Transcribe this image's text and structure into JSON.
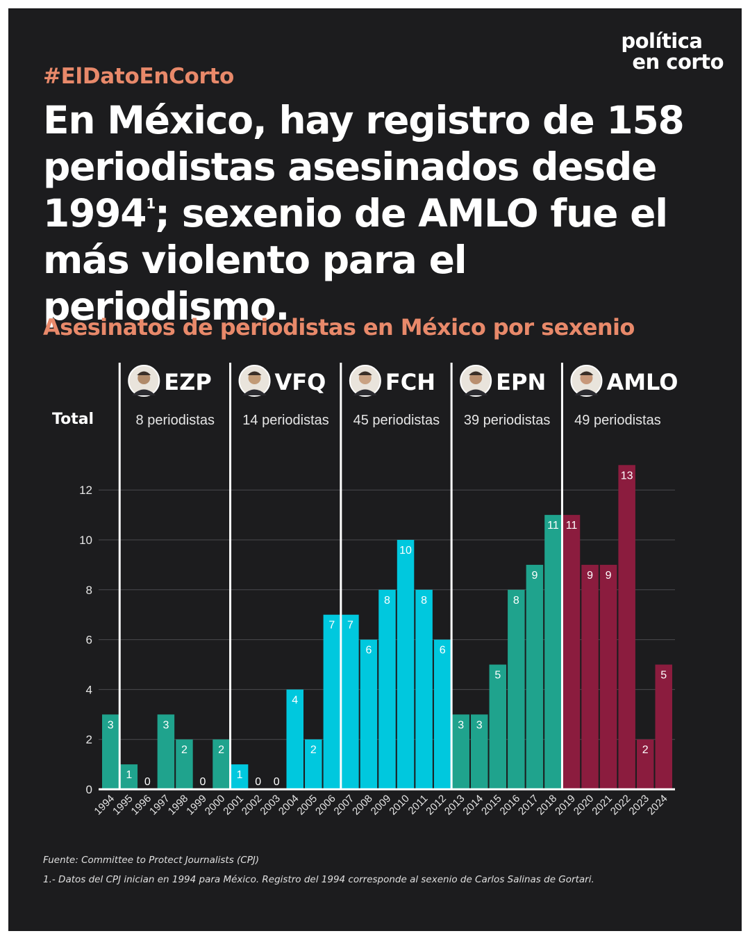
{
  "brand": {
    "line1": "política",
    "line2": "en corto"
  },
  "hashtag": "#ElDatoEnCorto",
  "headline": {
    "part1": "En México, hay registro de 158 periodistas asesinados desde 1994",
    "sup": "1",
    "part2": "; sexenio de AMLO fue el más violento para el periodismo."
  },
  "subtitle": "Asesinatos de periodistas en México por sexenio",
  "total_label": "Total",
  "colors": {
    "background": "#1c1c1e",
    "accent": "#e8896a",
    "green": "#1fa38d",
    "cyan": "#00c8de",
    "maroon": "#8b1c3e"
  },
  "chart_data": {
    "type": "bar",
    "title": "Asesinatos de periodistas en México por sexenio",
    "xlabel": "",
    "ylabel": "",
    "ylim": [
      0,
      13
    ],
    "yticks": [
      0,
      2,
      4,
      6,
      8,
      10,
      12
    ],
    "grid": true,
    "categories": [
      "1994",
      "1995",
      "1996",
      "1997",
      "1998",
      "1999",
      "2000",
      "2001",
      "2002",
      "2003",
      "2004",
      "2005",
      "2006",
      "2007",
      "2008",
      "2009",
      "2010",
      "2011",
      "2012",
      "2013",
      "2014",
      "2015",
      "2016",
      "2017",
      "2018",
      "2019",
      "2020",
      "2021",
      "2022",
      "2023",
      "2024"
    ],
    "values": [
      3,
      1,
      0,
      3,
      2,
      0,
      2,
      1,
      0,
      0,
      4,
      2,
      7,
      7,
      6,
      8,
      10,
      8,
      6,
      3,
      3,
      5,
      8,
      9,
      11,
      11,
      9,
      9,
      13,
      2,
      5
    ],
    "bar_colors": [
      "#1fa38d",
      "#1fa38d",
      "#1fa38d",
      "#1fa38d",
      "#1fa38d",
      "#1fa38d",
      "#1fa38d",
      "#00c8de",
      "#00c8de",
      "#00c8de",
      "#00c8de",
      "#00c8de",
      "#00c8de",
      "#00c8de",
      "#00c8de",
      "#00c8de",
      "#00c8de",
      "#00c8de",
      "#00c8de",
      "#1fa38d",
      "#1fa38d",
      "#1fa38d",
      "#1fa38d",
      "#1fa38d",
      "#1fa38d",
      "#8b1c3e",
      "#8b1c3e",
      "#8b1c3e",
      "#8b1c3e",
      "#8b1c3e",
      "#8b1c3e"
    ],
    "sexenios": [
      {
        "name": "EZP",
        "total": "8 periodistas",
        "start": "1995",
        "end": "2000",
        "face": "#b08a6a"
      },
      {
        "name": "VFQ",
        "total": "14 periodistas",
        "start": "2001",
        "end": "2006",
        "face": "#c19a76"
      },
      {
        "name": "FCH",
        "total": "45 periodistas",
        "start": "2007",
        "end": "2012",
        "face": "#c9a283"
      },
      {
        "name": "EPN",
        "total": "39 periodistas",
        "start": "2013",
        "end": "2018",
        "face": "#b98f6f"
      },
      {
        "name": "AMLO",
        "total": "49 periodistas",
        "start": "2019",
        "end": "2024",
        "face": "#c7987a"
      }
    ]
  },
  "footer": {
    "source": "Fuente: Committee to Protect Journalists (CPJ)",
    "note": "1.- Datos del CPJ inician en 1994 para México. Registro del 1994 corresponde al sexenio de Carlos Salinas de Gortari."
  }
}
